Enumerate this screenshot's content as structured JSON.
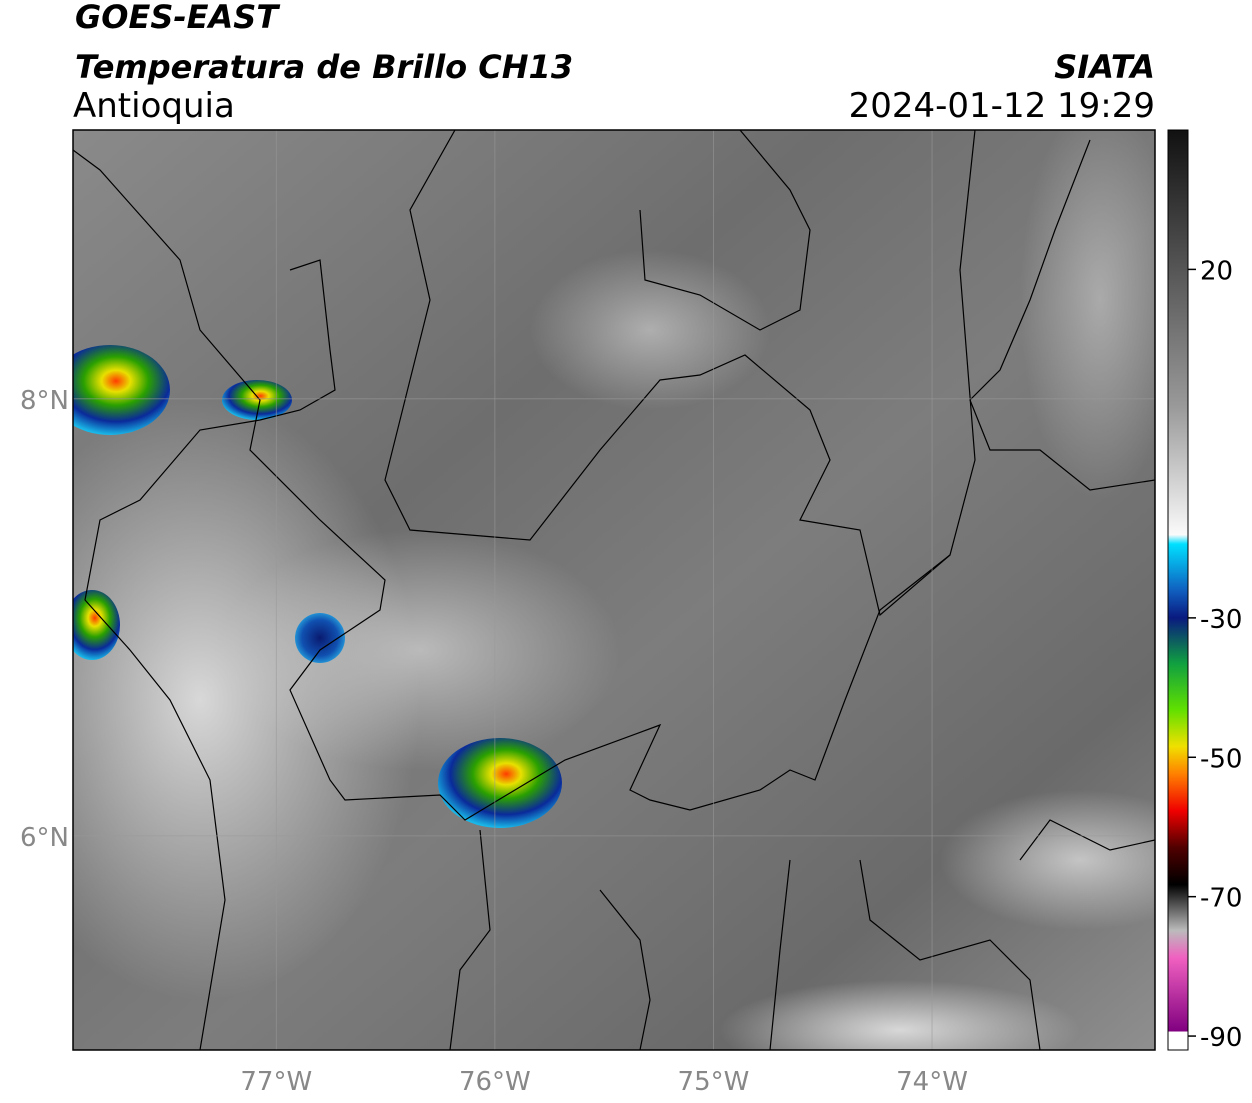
{
  "header": {
    "title": "GOES-EAST",
    "subtitle": "Temperatura de Brillo CH13",
    "region": "Antioquia",
    "source": "SIATA",
    "datetime": "2024-01-12 19:29"
  },
  "map": {
    "lonlim": [
      -77.93,
      -72.98
    ],
    "latlim": [
      5.02,
      9.23
    ],
    "lonticks": [
      {
        "value": -77,
        "label": "77°W"
      },
      {
        "value": -76,
        "label": "76°W"
      },
      {
        "value": -75,
        "label": "75°W"
      },
      {
        "value": -74,
        "label": "74°W"
      }
    ],
    "latticks": [
      {
        "value": 8,
        "label": "8°N"
      },
      {
        "value": 6,
        "label": "6°N"
      }
    ]
  },
  "colorbar": {
    "lim": [
      -92,
      40
    ],
    "ticks": [
      20,
      -30,
      -50,
      -70,
      -90
    ]
  }
}
